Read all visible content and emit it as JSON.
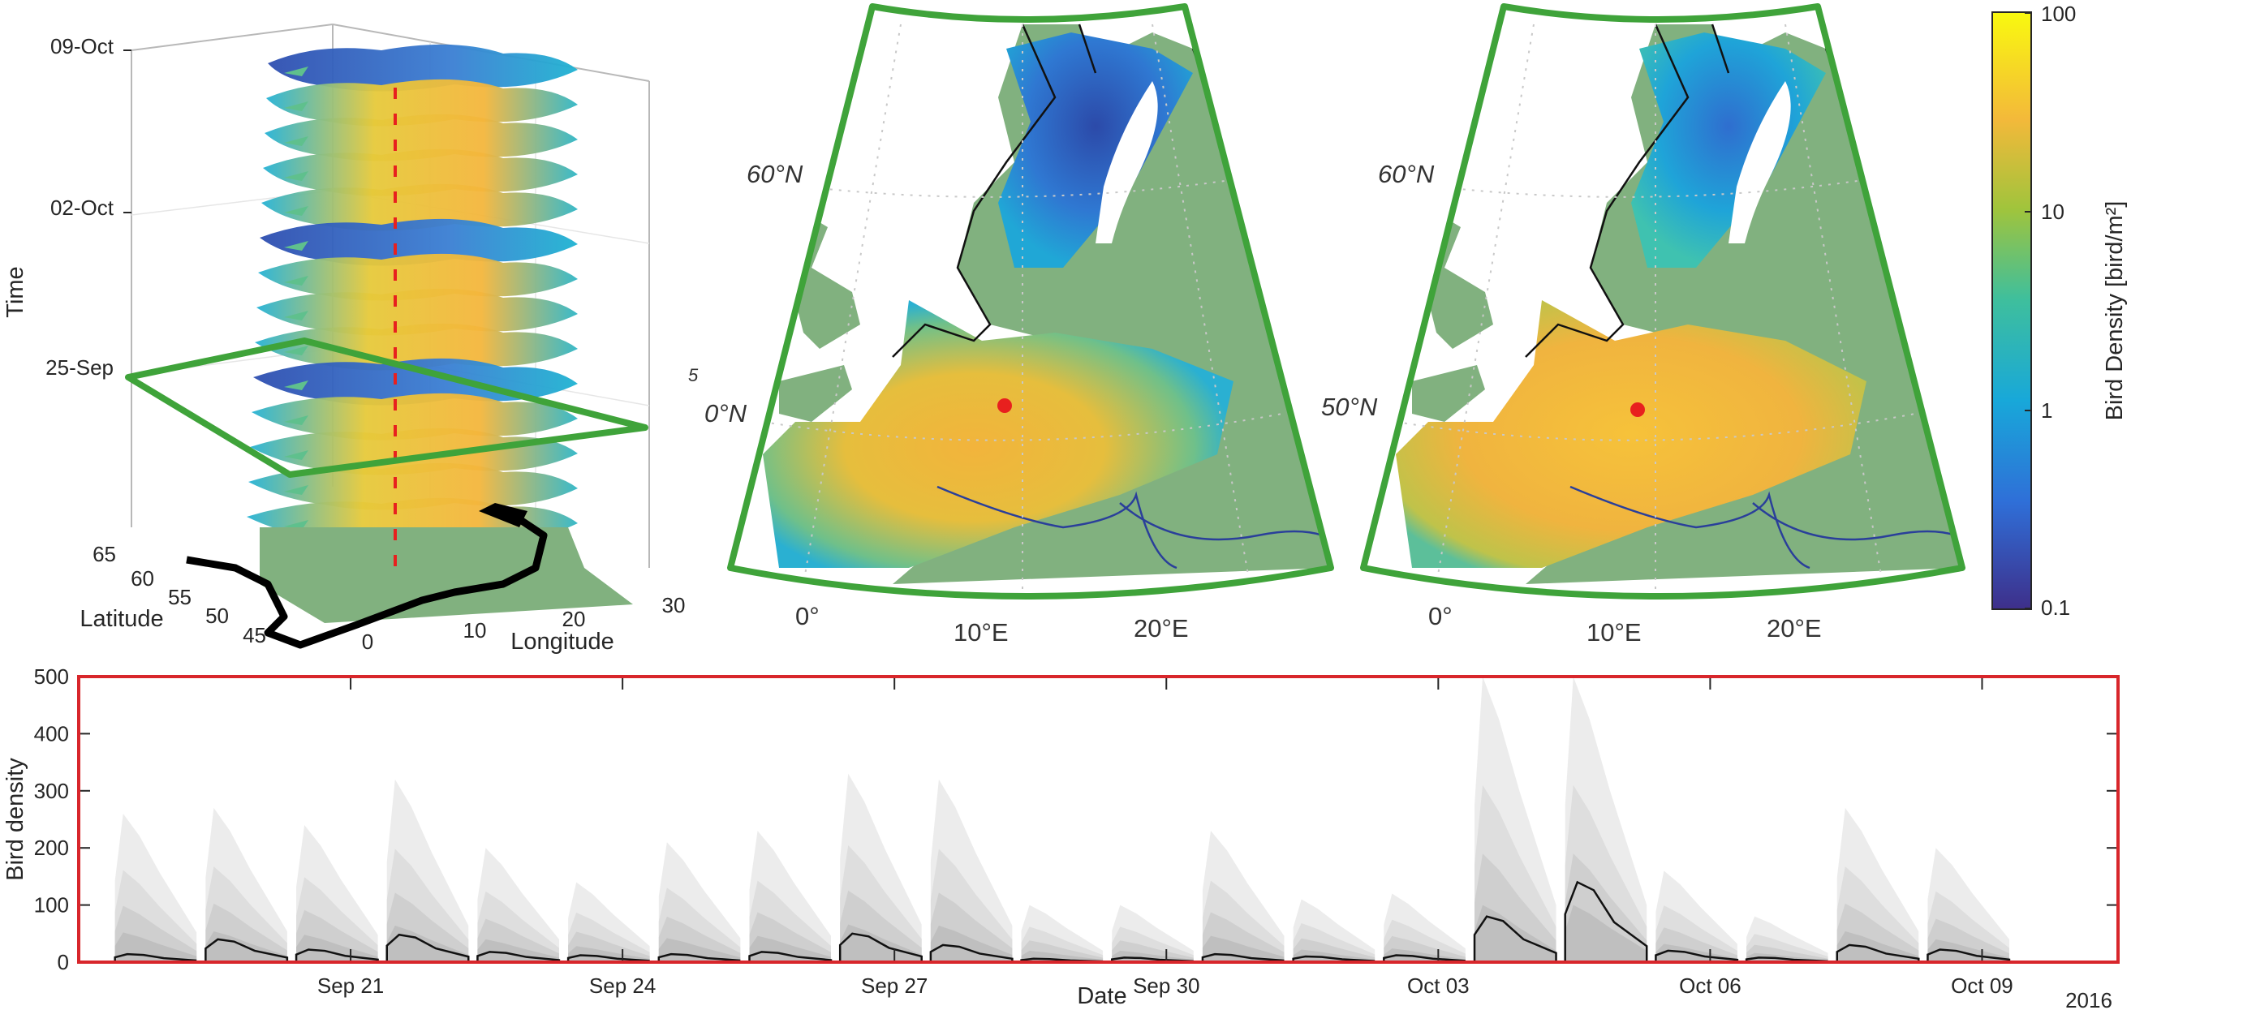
{
  "panel_3d": {
    "time_ticks": [
      "09-Oct",
      "02-Oct",
      "25-Sep"
    ],
    "time_label": "Time",
    "latitude_label": "Latitude",
    "latitude_ticks": [
      "65",
      "60",
      "55",
      "50",
      "45"
    ],
    "longitude_label": "Longitude",
    "longitude_ticks": [
      "0",
      "10",
      "20",
      "30"
    ]
  },
  "map_left": {
    "lat_labels": [
      "60°N",
      "5",
      "0°N"
    ],
    "lon_labels": [
      "0°",
      "10°E",
      "20°E"
    ]
  },
  "map_right": {
    "lat_labels": [
      "60°N",
      "50°N"
    ],
    "lon_labels": [
      "0°",
      "10°E",
      "20°E"
    ]
  },
  "colorbar": {
    "label": "Bird Density [bird/m²]",
    "ticks": [
      "100",
      "10",
      "1",
      "0.1"
    ],
    "scale": "log"
  },
  "colors": {
    "frame_green": "#3fa33a",
    "timeseries_box_red": "#d8262b",
    "land_green": "#81b17f",
    "marker_red": "#e8201e",
    "river_blue": "#2a3f9a"
  },
  "chart_data": {
    "type": "area",
    "xlabel": "Date",
    "ylabel": "Bird density",
    "ylim": [
      0,
      500
    ],
    "yticks": [
      "0",
      "100",
      "200",
      "300",
      "400",
      "500"
    ],
    "xticks": [
      "Sep 21",
      "Sep 24",
      "Sep 27",
      "Sep 30",
      "Oct 03",
      "Oct 06",
      "Oct 09"
    ],
    "year_label": "2016",
    "series": [
      {
        "x": [
          18.85,
          19.85,
          20.85,
          21.85,
          22.85,
          23.85,
          24.85,
          25.85,
          26.85,
          27.85,
          28.85,
          29.85,
          30.85,
          31.85,
          32.85,
          33.85,
          34.85,
          35.85,
          36.85,
          37.85,
          38.85
        ],
        "values": [
          14,
          40,
          22,
          48,
          18,
          12,
          14,
          18,
          50,
          30,
          6,
          8,
          14,
          10,
          12,
          80,
          140,
          20,
          8,
          30,
          22
        ],
        "upper_bound": [
          260,
          270,
          240,
          320,
          200,
          140,
          210,
          230,
          330,
          320,
          100,
          100,
          230,
          110,
          120,
          500,
          500,
          160,
          80,
          270,
          200
        ]
      }
    ]
  }
}
